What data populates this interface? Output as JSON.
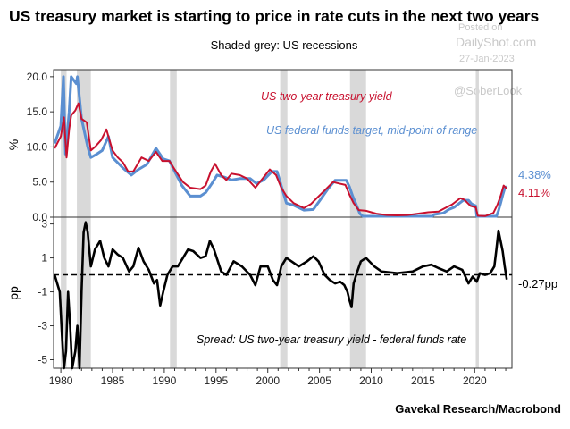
{
  "chart_data": {
    "type": "line",
    "title": "US treasury market is starting to price in rate cuts in the next two years",
    "subtitle": "Shaded grey: US recessions",
    "source": "Gavekal Research/Macrobond",
    "watermark": {
      "line1": "Posted on",
      "line2": "DailyShot.com",
      "date": "27-Jan-2023",
      "handle": "@SoberLook"
    },
    "x_ticks": [
      "1980",
      "1985",
      "1990",
      "1995",
      "2000",
      "2005",
      "2010",
      "2015",
      "2020"
    ],
    "xlim": [
      1979.3,
      2023.6
    ],
    "recessions": [
      [
        1980.0,
        1980.55
      ],
      [
        1981.55,
        1982.9
      ],
      [
        1990.55,
        1991.2
      ],
      [
        2001.2,
        2001.9
      ],
      [
        2007.95,
        2009.5
      ],
      [
        2020.1,
        2020.4
      ]
    ],
    "top_panel": {
      "ylabel": "%",
      "ylim": [
        0,
        21
      ],
      "yticks": [
        "20.0",
        "15.0",
        "10.0",
        "5.0",
        "0.0"
      ],
      "ytick_values": [
        20,
        15,
        10,
        5,
        0
      ],
      "series": [
        {
          "name": "US two-year treasury yield",
          "color": "#c8102e",
          "end_label": "4.11%",
          "points": [
            [
              1979.4,
              9.8
            ],
            [
              1980.0,
              11.5
            ],
            [
              1980.3,
              14.2
            ],
            [
              1980.55,
              8.5
            ],
            [
              1980.8,
              12.5
            ],
            [
              1981.0,
              14.5
            ],
            [
              1981.4,
              15.2
            ],
            [
              1981.7,
              16.2
            ],
            [
              1982.0,
              14.0
            ],
            [
              1982.5,
              13.5
            ],
            [
              1982.9,
              9.5
            ],
            [
              1983.3,
              10.0
            ],
            [
              1983.9,
              11.0
            ],
            [
              1984.4,
              12.5
            ],
            [
              1984.7,
              11.0
            ],
            [
              1985.0,
              9.5
            ],
            [
              1985.5,
              8.5
            ],
            [
              1986.0,
              7.8
            ],
            [
              1986.5,
              6.5
            ],
            [
              1987.0,
              6.5
            ],
            [
              1987.8,
              8.5
            ],
            [
              1988.5,
              8.0
            ],
            [
              1989.2,
              9.3
            ],
            [
              1989.8,
              8.0
            ],
            [
              1990.5,
              8.0
            ],
            [
              1991.0,
              6.8
            ],
            [
              1991.8,
              5.0
            ],
            [
              1992.5,
              4.2
            ],
            [
              1993.5,
              4.0
            ],
            [
              1994.0,
              4.5
            ],
            [
              1994.5,
              6.5
            ],
            [
              1994.9,
              7.6
            ],
            [
              1995.5,
              6.0
            ],
            [
              1996.0,
              5.3
            ],
            [
              1996.5,
              6.2
            ],
            [
              1997.3,
              6.0
            ],
            [
              1998.0,
              5.5
            ],
            [
              1998.8,
              4.2
            ],
            [
              1999.5,
              5.5
            ],
            [
              2000.2,
              6.8
            ],
            [
              2000.8,
              6.0
            ],
            [
              2001.3,
              4.2
            ],
            [
              2001.8,
              3.0
            ],
            [
              2002.5,
              2.0
            ],
            [
              2003.5,
              1.3
            ],
            [
              2004.2,
              1.9
            ],
            [
              2004.8,
              2.8
            ],
            [
              2005.5,
              3.8
            ],
            [
              2006.3,
              5.0
            ],
            [
              2006.9,
              4.8
            ],
            [
              2007.5,
              4.6
            ],
            [
              2007.9,
              3.2
            ],
            [
              2008.3,
              2.0
            ],
            [
              2008.8,
              1.0
            ],
            [
              2009.5,
              0.9
            ],
            [
              2010.5,
              0.5
            ],
            [
              2011.5,
              0.3
            ],
            [
              2012.5,
              0.25
            ],
            [
              2013.5,
              0.3
            ],
            [
              2014.5,
              0.5
            ],
            [
              2015.5,
              0.7
            ],
            [
              2016.5,
              0.8
            ],
            [
              2017.0,
              1.2
            ],
            [
              2017.8,
              1.8
            ],
            [
              2018.6,
              2.7
            ],
            [
              2019.0,
              2.5
            ],
            [
              2019.6,
              1.6
            ],
            [
              2020.1,
              1.4
            ],
            [
              2020.3,
              0.2
            ],
            [
              2021.0,
              0.15
            ],
            [
              2021.8,
              0.6
            ],
            [
              2022.2,
              1.8
            ],
            [
              2022.5,
              3.0
            ],
            [
              2022.8,
              4.5
            ],
            [
              2023.0,
              4.2
            ],
            [
              2023.1,
              4.11
            ]
          ]
        },
        {
          "name": "US federal funds target, mid-point of range",
          "color": "#5b8fd1",
          "end_label": "4.38%",
          "points": [
            [
              1979.4,
              10.5
            ],
            [
              1980.0,
              13.0
            ],
            [
              1980.25,
              20.0
            ],
            [
              1980.45,
              9.0
            ],
            [
              1980.8,
              15.0
            ],
            [
              1981.0,
              20.0
            ],
            [
              1981.5,
              19.0
            ],
            [
              1981.6,
              20.0
            ],
            [
              1982.0,
              14.0
            ],
            [
              1982.6,
              10.0
            ],
            [
              1982.9,
              8.5
            ],
            [
              1983.5,
              9.0
            ],
            [
              1984.0,
              9.5
            ],
            [
              1984.6,
              11.5
            ],
            [
              1985.0,
              8.5
            ],
            [
              1986.0,
              7.0
            ],
            [
              1986.8,
              6.0
            ],
            [
              1987.5,
              6.8
            ],
            [
              1988.3,
              7.5
            ],
            [
              1989.2,
              9.8
            ],
            [
              1989.9,
              8.3
            ],
            [
              1990.5,
              8.0
            ],
            [
              1991.0,
              6.5
            ],
            [
              1991.7,
              4.5
            ],
            [
              1992.5,
              3.0
            ],
            [
              1993.5,
              3.0
            ],
            [
              1994.0,
              3.5
            ],
            [
              1994.6,
              4.8
            ],
            [
              1995.1,
              6.0
            ],
            [
              1995.8,
              5.7
            ],
            [
              1996.5,
              5.3
            ],
            [
              1997.3,
              5.5
            ],
            [
              1998.3,
              5.5
            ],
            [
              1998.9,
              4.8
            ],
            [
              1999.6,
              5.3
            ],
            [
              2000.4,
              6.5
            ],
            [
              2000.9,
              6.5
            ],
            [
              2001.2,
              5.0
            ],
            [
              2001.8,
              2.0
            ],
            [
              2002.5,
              1.7
            ],
            [
              2003.5,
              1.0
            ],
            [
              2004.4,
              1.1
            ],
            [
              2005.0,
              2.3
            ],
            [
              2005.8,
              4.0
            ],
            [
              2006.5,
              5.25
            ],
            [
              2007.6,
              5.25
            ],
            [
              2007.9,
              4.3
            ],
            [
              2008.2,
              3.0
            ],
            [
              2008.5,
              2.0
            ],
            [
              2008.9,
              0.5
            ],
            [
              2009.2,
              0.13
            ],
            [
              2012.0,
              0.13
            ],
            [
              2015.9,
              0.13
            ],
            [
              2016.1,
              0.38
            ],
            [
              2017.0,
              0.6
            ],
            [
              2017.5,
              1.1
            ],
            [
              2018.0,
              1.4
            ],
            [
              2018.9,
              2.4
            ],
            [
              2019.4,
              2.4
            ],
            [
              2019.7,
              1.9
            ],
            [
              2020.1,
              1.6
            ],
            [
              2020.2,
              0.13
            ],
            [
              2022.1,
              0.13
            ],
            [
              2022.3,
              0.9
            ],
            [
              2022.5,
              2.0
            ],
            [
              2022.7,
              3.1
            ],
            [
              2022.9,
              4.1
            ],
            [
              2023.1,
              4.38
            ]
          ]
        }
      ]
    },
    "bottom_panel": {
      "ylabel": "pp",
      "ylim": [
        -5.5,
        3.4
      ],
      "yticks": [
        "3",
        "1",
        "-1",
        "-3",
        "-5"
      ],
      "ytick_values": [
        3,
        1,
        -1,
        -3,
        -5
      ],
      "series": [
        {
          "name": "Spread: US two-year treasury yield - federal funds rate",
          "color": "#000000",
          "end_label": "-0.27pp",
          "points": [
            [
              1979.4,
              0.0
            ],
            [
              1979.9,
              -1.0
            ],
            [
              1980.1,
              -3.5
            ],
            [
              1980.3,
              -5.5
            ],
            [
              1980.5,
              -4.5
            ],
            [
              1980.7,
              -1.0
            ],
            [
              1980.9,
              -3.0
            ],
            [
              1981.1,
              -5.5
            ],
            [
              1981.4,
              -4.5
            ],
            [
              1981.6,
              -3.0
            ],
            [
              1981.8,
              -5.5
            ],
            [
              1982.0,
              -1.0
            ],
            [
              1982.2,
              2.5
            ],
            [
              1982.4,
              3.1
            ],
            [
              1982.6,
              2.5
            ],
            [
              1982.9,
              0.5
            ],
            [
              1983.3,
              1.5
            ],
            [
              1983.8,
              2.0
            ],
            [
              1984.2,
              1.0
            ],
            [
              1984.6,
              0.5
            ],
            [
              1985.0,
              1.5
            ],
            [
              1985.5,
              1.2
            ],
            [
              1986.0,
              1.0
            ],
            [
              1986.6,
              0.2
            ],
            [
              1987.0,
              0.5
            ],
            [
              1987.5,
              1.6
            ],
            [
              1988.0,
              0.8
            ],
            [
              1988.5,
              0.3
            ],
            [
              1989.0,
              -0.5
            ],
            [
              1989.3,
              -0.3
            ],
            [
              1989.6,
              -1.8
            ],
            [
              1989.9,
              -1.0
            ],
            [
              1990.3,
              0.0
            ],
            [
              1990.8,
              0.5
            ],
            [
              1991.3,
              0.5
            ],
            [
              1991.8,
              1.0
            ],
            [
              1992.3,
              1.5
            ],
            [
              1992.8,
              1.4
            ],
            [
              1993.5,
              1.0
            ],
            [
              1994.0,
              1.1
            ],
            [
              1994.4,
              2.0
            ],
            [
              1994.8,
              1.5
            ],
            [
              1995.5,
              0.2
            ],
            [
              1996.0,
              0.0
            ],
            [
              1996.7,
              0.8
            ],
            [
              1997.5,
              0.5
            ],
            [
              1998.3,
              0.0
            ],
            [
              1998.8,
              -0.6
            ],
            [
              1999.3,
              0.5
            ],
            [
              2000.0,
              0.5
            ],
            [
              2000.5,
              -0.3
            ],
            [
              2000.9,
              -0.6
            ],
            [
              2001.3,
              0.5
            ],
            [
              2001.8,
              1.0
            ],
            [
              2002.3,
              0.8
            ],
            [
              2003.0,
              0.5
            ],
            [
              2003.8,
              0.8
            ],
            [
              2004.4,
              1.1
            ],
            [
              2004.9,
              0.8
            ],
            [
              2005.5,
              0.0
            ],
            [
              2006.0,
              -0.3
            ],
            [
              2006.5,
              -0.5
            ],
            [
              2007.0,
              -0.4
            ],
            [
              2007.4,
              -0.6
            ],
            [
              2007.7,
              -1.0
            ],
            [
              2007.9,
              -1.5
            ],
            [
              2008.1,
              -1.9
            ],
            [
              2008.3,
              -0.5
            ],
            [
              2008.6,
              0.1
            ],
            [
              2009.0,
              0.8
            ],
            [
              2009.5,
              1.0
            ],
            [
              2010.3,
              0.5
            ],
            [
              2011.0,
              0.2
            ],
            [
              2012.5,
              0.1
            ],
            [
              2014.0,
              0.2
            ],
            [
              2015.0,
              0.5
            ],
            [
              2015.8,
              0.6
            ],
            [
              2016.5,
              0.4
            ],
            [
              2017.3,
              0.2
            ],
            [
              2018.0,
              0.5
            ],
            [
              2018.8,
              0.3
            ],
            [
              2019.4,
              -0.5
            ],
            [
              2019.8,
              -0.1
            ],
            [
              2020.2,
              -0.4
            ],
            [
              2020.5,
              0.1
            ],
            [
              2021.0,
              0.0
            ],
            [
              2021.5,
              0.1
            ],
            [
              2021.9,
              0.5
            ],
            [
              2022.1,
              1.5
            ],
            [
              2022.3,
              2.6
            ],
            [
              2022.5,
              2.0
            ],
            [
              2022.7,
              1.4
            ],
            [
              2022.9,
              0.5
            ],
            [
              2023.1,
              -0.27
            ]
          ]
        }
      ]
    }
  }
}
